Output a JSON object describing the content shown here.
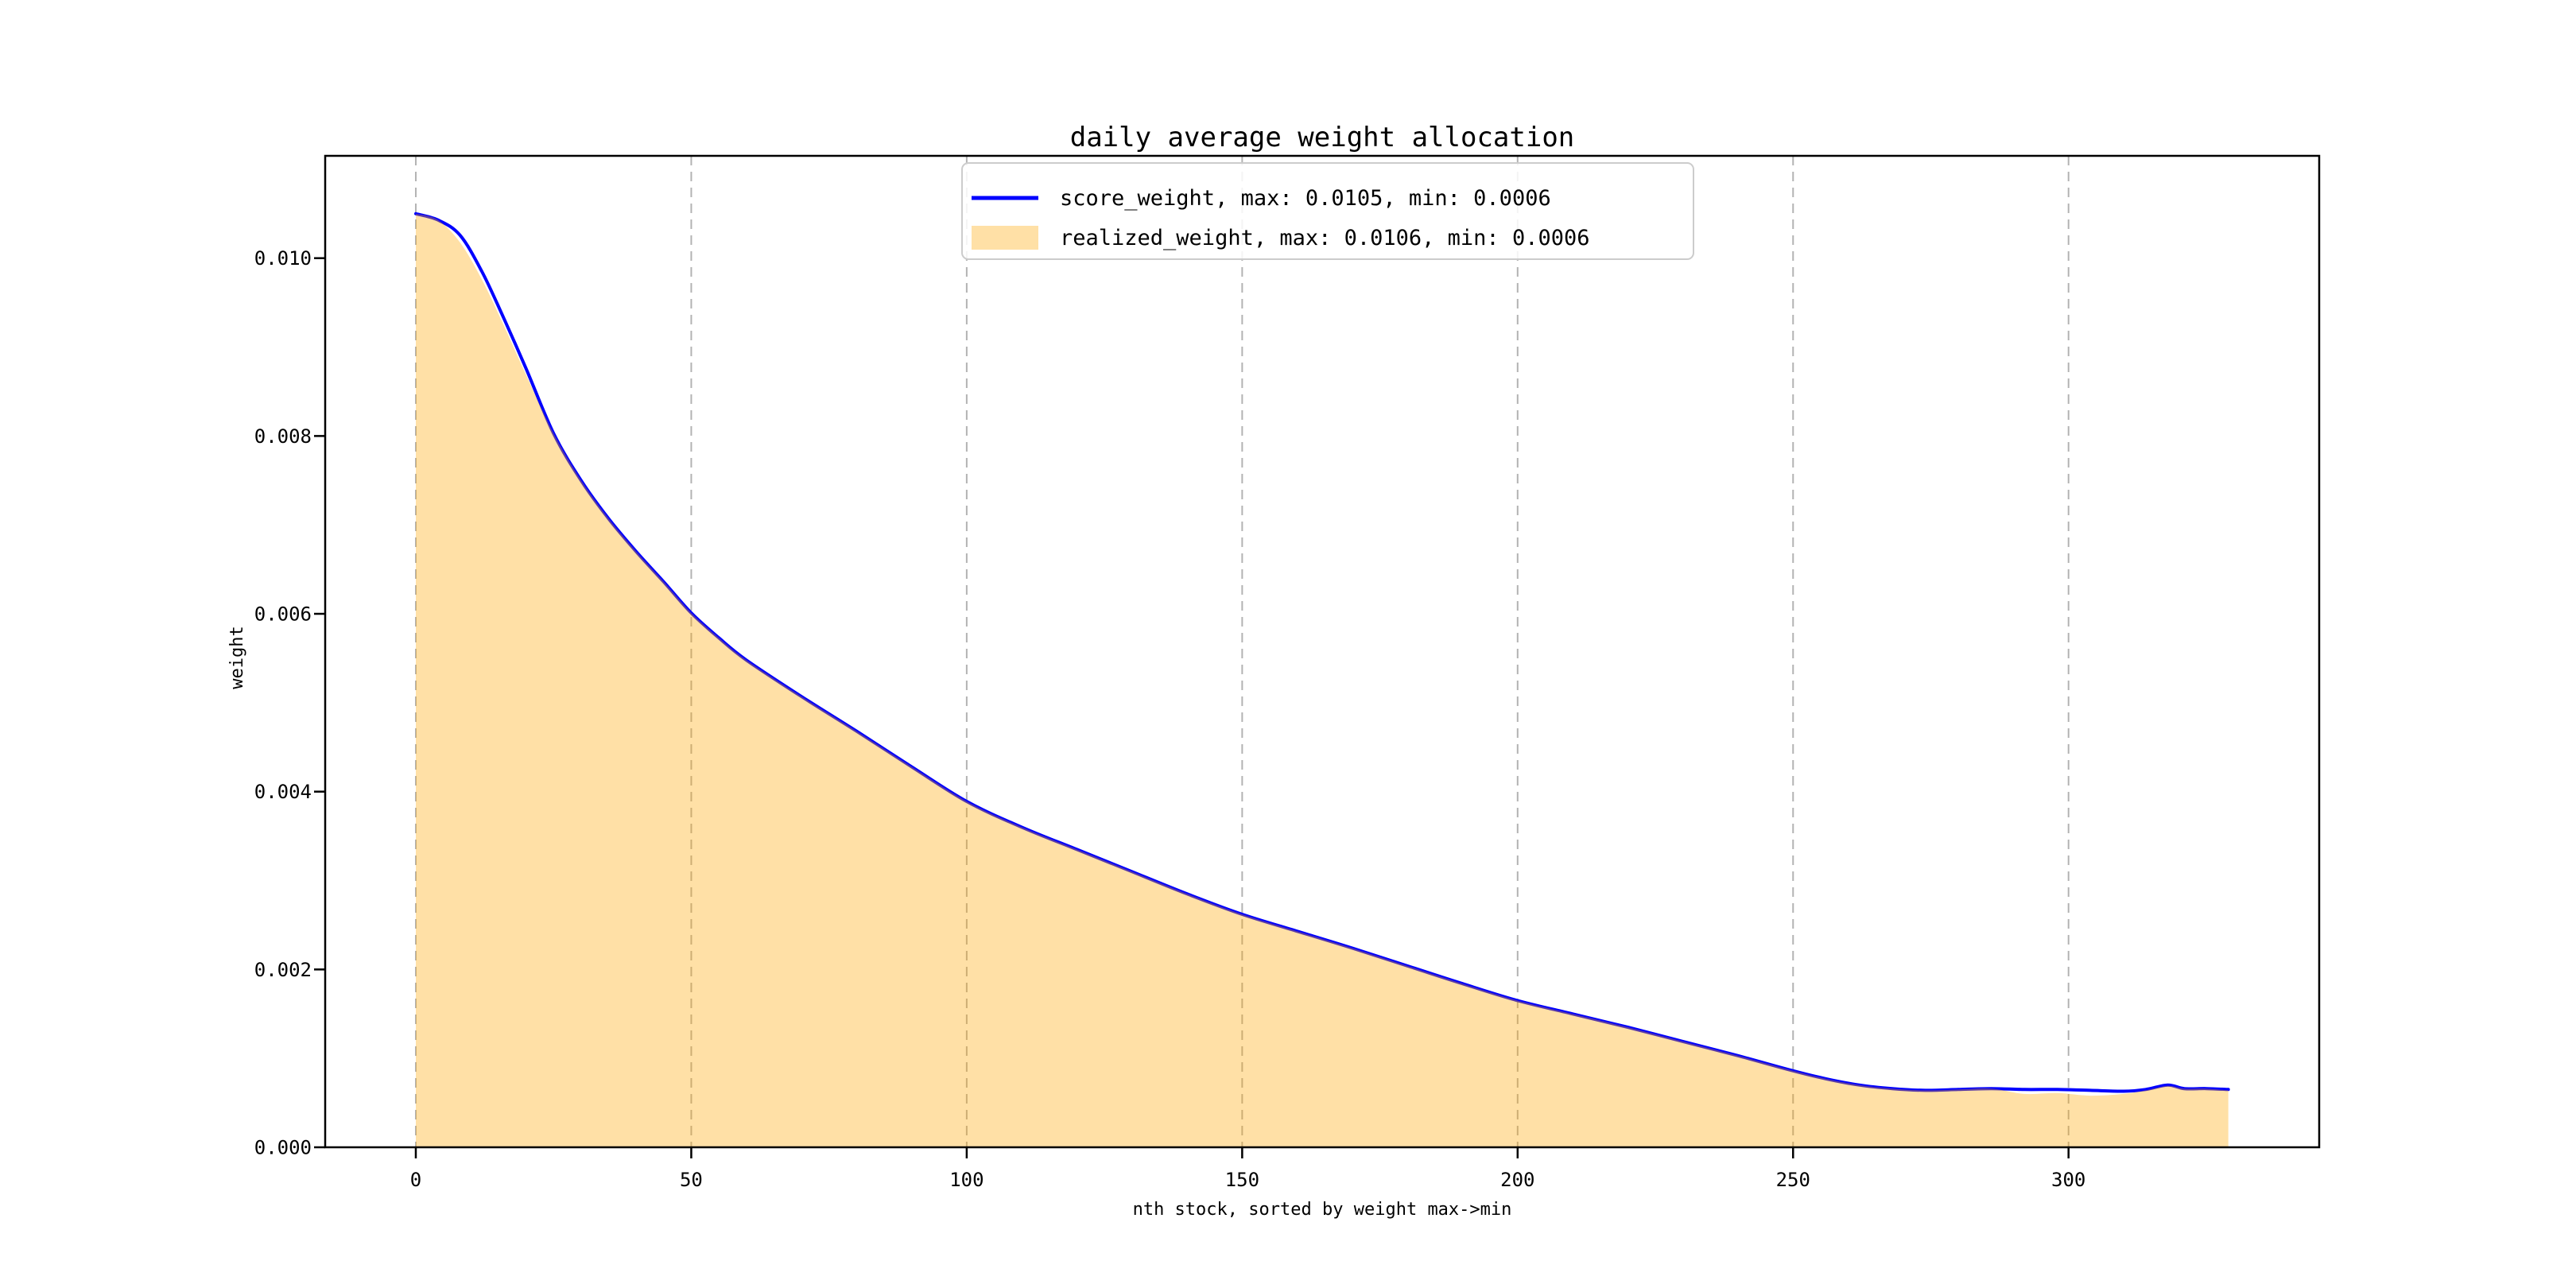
{
  "chart_data": {
    "type": "area",
    "title": "daily average weight allocation",
    "xlabel": "nth stock, sorted by weight max->min",
    "ylabel": "weight",
    "xlim": [
      -16.45,
      345.5
    ],
    "ylim": [
      0,
      0.011151
    ],
    "x_ticks": [
      0,
      50,
      100,
      150,
      200,
      250,
      300
    ],
    "x_tick_labels": [
      "0",
      "50",
      "100",
      "150",
      "200",
      "250",
      "300"
    ],
    "y_ticks": [
      0.0,
      0.002,
      0.004,
      0.006,
      0.008,
      0.01
    ],
    "y_tick_labels": [
      "0.000",
      "0.002",
      "0.004",
      "0.006",
      "0.008",
      "0.010"
    ],
    "grid": {
      "axis": "x",
      "style": "dashed",
      "color": "#b3b3b3"
    },
    "legend": {
      "position": "upper center",
      "entries": [
        {
          "label": "score_weight, max: 0.0105, min: 0.0006",
          "type": "line",
          "color": "#0000ff"
        },
        {
          "label": "realized_weight, max: 0.0106, min: 0.0006",
          "type": "area",
          "color": "#ffa500",
          "opacity": 0.35
        }
      ]
    },
    "series": [
      {
        "name": "score_weight",
        "type": "line",
        "color": "#0000ff",
        "points": [
          [
            0,
            0.0105
          ],
          [
            4,
            0.01043
          ],
          [
            8,
            0.01026
          ],
          [
            12,
            0.00985
          ],
          [
            16,
            0.00932
          ],
          [
            20,
            0.00876
          ],
          [
            25,
            0.00803
          ],
          [
            30,
            0.0075
          ],
          [
            35,
            0.00707
          ],
          [
            40,
            0.0067
          ],
          [
            45,
            0.00636
          ],
          [
            50,
            0.00601
          ],
          [
            55,
            0.00573
          ],
          [
            60,
            0.00548
          ],
          [
            70,
            0.00507
          ],
          [
            80,
            0.00468
          ],
          [
            90,
            0.00428
          ],
          [
            100,
            0.00389
          ],
          [
            110,
            0.0036
          ],
          [
            120,
            0.00335
          ],
          [
            130,
            0.0031
          ],
          [
            140,
            0.00285
          ],
          [
            150,
            0.00262
          ],
          [
            160,
            0.00243
          ],
          [
            170,
            0.00224
          ],
          [
            180,
            0.00204
          ],
          [
            190,
            0.00184
          ],
          [
            200,
            0.00165
          ],
          [
            210,
            0.0015
          ],
          [
            220,
            0.00135
          ],
          [
            230,
            0.00119
          ],
          [
            240,
            0.00103
          ],
          [
            250,
            0.00086
          ],
          [
            256,
            0.00077
          ],
          [
            262,
            0.0007
          ],
          [
            268,
            0.00066
          ],
          [
            274,
            0.00064
          ],
          [
            280,
            0.00065
          ],
          [
            286,
            0.00066
          ],
          [
            292,
            0.00065
          ],
          [
            298,
            0.00065
          ],
          [
            304,
            0.00064
          ],
          [
            310,
            0.00063
          ],
          [
            314,
            0.00065
          ],
          [
            318,
            0.0007
          ],
          [
            321,
            0.00066
          ],
          [
            325,
            0.00066
          ],
          [
            329,
            0.00065
          ]
        ]
      },
      {
        "name": "realized_weight",
        "type": "area",
        "color": "#ffa500",
        "opacity": 0.35,
        "points": [
          [
            0,
            0.0105
          ],
          [
            4,
            0.01043
          ],
          [
            8,
            0.01018
          ],
          [
            12,
            0.00976
          ],
          [
            16,
            0.00924
          ],
          [
            20,
            0.00869
          ],
          [
            25,
            0.00803
          ],
          [
            30,
            0.0075
          ],
          [
            35,
            0.00707
          ],
          [
            40,
            0.0067
          ],
          [
            45,
            0.00636
          ],
          [
            50,
            0.00601
          ],
          [
            55,
            0.00573
          ],
          [
            60,
            0.00548
          ],
          [
            70,
            0.00507
          ],
          [
            80,
            0.00468
          ],
          [
            90,
            0.00428
          ],
          [
            100,
            0.00389
          ],
          [
            110,
            0.0036
          ],
          [
            120,
            0.00335
          ],
          [
            130,
            0.0031
          ],
          [
            140,
            0.00285
          ],
          [
            150,
            0.00262
          ],
          [
            160,
            0.00243
          ],
          [
            170,
            0.00224
          ],
          [
            180,
            0.00204
          ],
          [
            190,
            0.00184
          ],
          [
            200,
            0.00165
          ],
          [
            210,
            0.0015
          ],
          [
            220,
            0.00135
          ],
          [
            230,
            0.00119
          ],
          [
            240,
            0.00103
          ],
          [
            250,
            0.00086
          ],
          [
            256,
            0.00077
          ],
          [
            262,
            0.0007
          ],
          [
            268,
            0.00066
          ],
          [
            274,
            0.00064
          ],
          [
            280,
            0.00065
          ],
          [
            286,
            0.00066
          ],
          [
            292,
            0.0006
          ],
          [
            298,
            0.00061
          ],
          [
            304,
            0.00058
          ],
          [
            310,
            0.0006
          ],
          [
            314,
            0.00064
          ],
          [
            318,
            0.00069
          ],
          [
            321,
            0.00066
          ],
          [
            325,
            0.00066
          ],
          [
            329,
            0.00064
          ]
        ]
      }
    ]
  }
}
